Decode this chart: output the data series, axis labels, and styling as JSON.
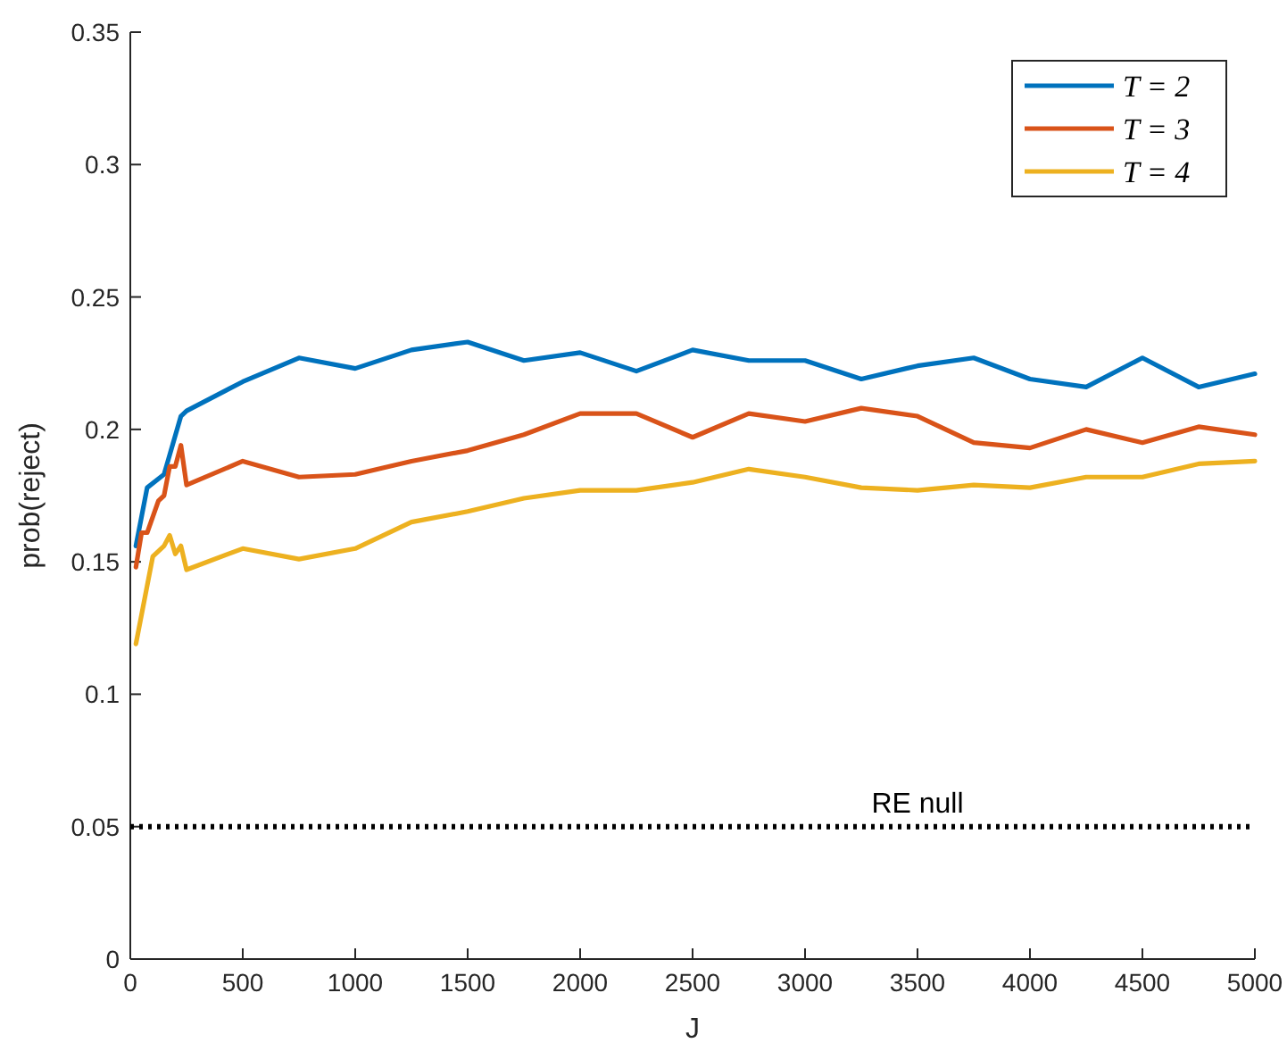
{
  "chart_data": {
    "type": "line",
    "xlabel": "J",
    "ylabel": "prob(reject)",
    "xlim": [
      0,
      5000
    ],
    "ylim": [
      0,
      0.35
    ],
    "xticks": [
      0,
      500,
      1000,
      1500,
      2000,
      2500,
      3000,
      3500,
      4000,
      4500,
      5000
    ],
    "yticks": [
      0,
      0.05,
      0.1,
      0.15,
      0.2,
      0.25,
      0.3,
      0.35
    ],
    "grid": false,
    "legend": "top right",
    "line_style": "solid",
    "marker": "none",
    "series": [
      {
        "name": "T = 2",
        "color": "#0072bd",
        "x": [
          25,
          75,
          150,
          225,
          250,
          500,
          750,
          1000,
          1250,
          1500,
          1750,
          2000,
          2250,
          2500,
          2750,
          3000,
          3250,
          3500,
          3750,
          4000,
          4250,
          4500,
          4750,
          5000
        ],
        "values": [
          0.156,
          0.178,
          0.183,
          0.205,
          0.207,
          0.218,
          0.227,
          0.223,
          0.23,
          0.233,
          0.226,
          0.229,
          0.222,
          0.23,
          0.226,
          0.226,
          0.219,
          0.224,
          0.227,
          0.219,
          0.216,
          0.227,
          0.216,
          0.221
        ]
      },
      {
        "name": "T = 3",
        "color": "#d95319",
        "x": [
          25,
          50,
          75,
          125,
          150,
          175,
          200,
          225,
          250,
          500,
          750,
          1000,
          1250,
          1500,
          1750,
          2000,
          2250,
          2500,
          2750,
          3000,
          3250,
          3500,
          3750,
          4000,
          4250,
          4500,
          4750,
          5000
        ],
        "values": [
          0.148,
          0.161,
          0.161,
          0.173,
          0.175,
          0.186,
          0.186,
          0.194,
          0.179,
          0.188,
          0.182,
          0.183,
          0.188,
          0.192,
          0.198,
          0.206,
          0.206,
          0.197,
          0.206,
          0.203,
          0.208,
          0.205,
          0.195,
          0.193,
          0.2,
          0.195,
          0.201,
          0.198
        ]
      },
      {
        "name": "T = 4",
        "color": "#edb120",
        "x": [
          25,
          100,
          150,
          175,
          200,
          225,
          250,
          500,
          750,
          1000,
          1250,
          1500,
          1750,
          2000,
          2250,
          2500,
          2750,
          3000,
          3250,
          3500,
          3750,
          4000,
          4250,
          4500,
          4750,
          5000
        ],
        "values": [
          0.119,
          0.152,
          0.156,
          0.16,
          0.153,
          0.156,
          0.147,
          0.155,
          0.151,
          0.155,
          0.165,
          0.169,
          0.174,
          0.177,
          0.177,
          0.18,
          0.185,
          0.182,
          0.178,
          0.177,
          0.179,
          0.178,
          0.182,
          0.182,
          0.187,
          0.188
        ]
      }
    ],
    "ref_lines": [
      {
        "axis": "y",
        "value": 0.05,
        "label": "RE null",
        "color": "#000000",
        "line_style": "dotted"
      }
    ]
  }
}
